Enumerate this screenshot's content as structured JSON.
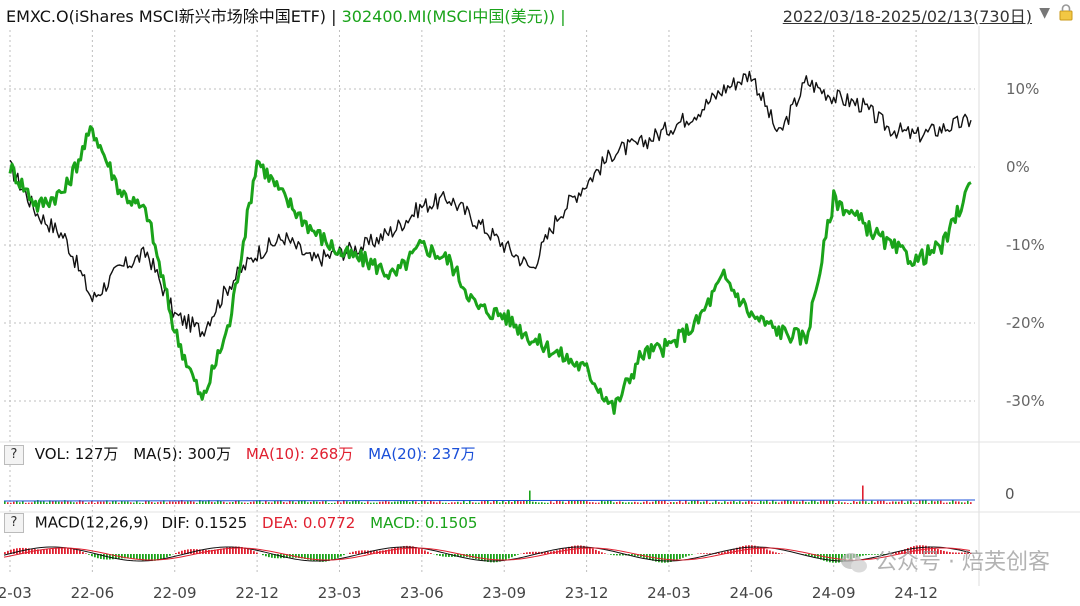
{
  "header": {
    "series1_label": "EMXC.O(iShares MSCI新兴市场除中国ETF)",
    "separator": " | ",
    "series2_label": "302400.MI(MSCI中国(美元))",
    "separator_end": " |",
    "date_range": "2022/03/18-2025/02/13(730日)",
    "dropdown_glyph": "▼"
  },
  "volume_panel": {
    "help": "?",
    "vol": "VOL: 127万",
    "ma5": "MA(5): 300万",
    "ma10": "MA(10): 268万",
    "ma20": "MA(20): 237万",
    "zero_label": "0"
  },
  "macd_panel": {
    "help": "?",
    "macd_title": "MACD(12,26,9)",
    "dif": "DIF: 0.1525",
    "dea": "DEA: 0.0772",
    "macd": "MACD: 0.1505"
  },
  "watermark": {
    "text": "公众号 · 焙芙创客",
    "icon": "wechat-icon"
  },
  "colors": {
    "series1": "#111111",
    "series2": "#1aa31a",
    "ma10": "#e02030",
    "ma20": "#1a4fd8",
    "grid": "#bfbfbf"
  },
  "chart_data": {
    "type": "line",
    "title": "",
    "xlabel": "",
    "ylabel": "",
    "ylim": [
      -35,
      15
    ],
    "y_ticks": [
      "10%",
      "0%",
      "-10%",
      "-20%",
      "-30%"
    ],
    "y_tick_values": [
      10,
      0,
      -10,
      -20,
      -30
    ],
    "x_ticks": [
      "22-03",
      "22-06",
      "22-09",
      "22-12",
      "23-03",
      "23-06",
      "23-09",
      "23-12",
      "24-03",
      "24-06",
      "24-09",
      "24-12"
    ],
    "x": [
      "22-03",
      "22-04",
      "22-05",
      "22-06",
      "22-07",
      "22-08",
      "22-09",
      "22-10",
      "22-11",
      "22-12",
      "23-01",
      "23-02",
      "23-03",
      "23-04",
      "23-05",
      "23-06",
      "23-07",
      "23-08",
      "23-09",
      "23-10",
      "23-11",
      "23-12",
      "24-01",
      "24-02",
      "24-03",
      "24-04",
      "24-05",
      "24-06",
      "24-07",
      "24-08",
      "24-09",
      "24-10",
      "24-11",
      "24-12",
      "25-01",
      "25-02"
    ],
    "series": [
      {
        "name": "EMXC.O(iShares MSCI新兴市场除中国ETF)",
        "values": [
          0,
          -6,
          -9,
          -17,
          -13,
          -11,
          -19,
          -21,
          -15,
          -11,
          -9,
          -12,
          -11,
          -10,
          -8,
          -5,
          -4,
          -7,
          -10,
          -13,
          -6,
          -2,
          2,
          3,
          5,
          7,
          10,
          12,
          4,
          11,
          9,
          8,
          5,
          4,
          5,
          6
        ]
      },
      {
        "name": "302400.MI(MSCI中国(美元))",
        "values": [
          0,
          -5,
          -3,
          5,
          -3,
          -6,
          -21,
          -30,
          -20,
          1,
          -4,
          -8,
          -11,
          -12,
          -14,
          -10,
          -12,
          -18,
          -19,
          -22,
          -24,
          -26,
          -31,
          -24,
          -23,
          -20,
          -14,
          -19,
          -21,
          -22,
          -4,
          -7,
          -10,
          -12,
          -10,
          -2
        ]
      }
    ]
  }
}
